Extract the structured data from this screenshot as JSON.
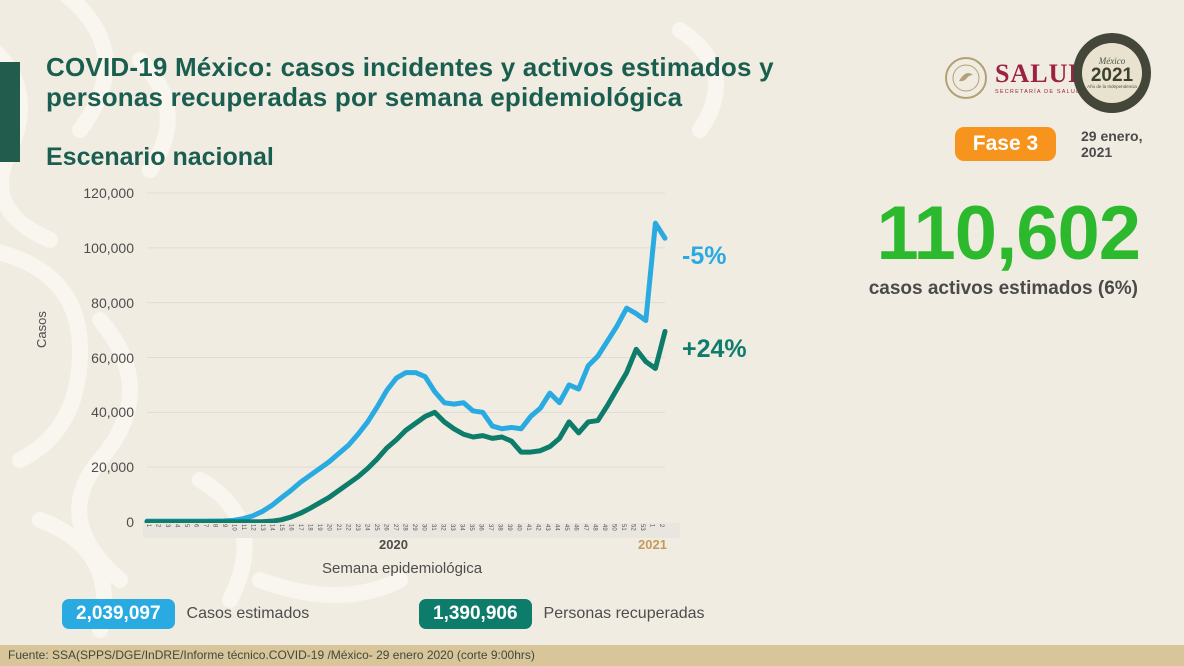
{
  "header": {
    "title": "COVID-19 México: casos incidentes y activos estimados y personas recuperadas por semana epidemiológica",
    "subtitle": "Escenario nacional",
    "phase_badge": "Fase 3",
    "date": "29 enero, 2021",
    "logos": {
      "salud": {
        "name": "SALUD",
        "sub": "SECRETARÍA DE SALUD"
      },
      "mexico2021": {
        "top": "México",
        "year": "2021",
        "sub": "Año de la Independencia"
      }
    }
  },
  "stats": {
    "active_cases": {
      "value": "110,602",
      "label": "casos activos estimados (6%)"
    },
    "estimated": {
      "value": "2,039,097",
      "label": "Casos estimados"
    },
    "recovered": {
      "value": "1,390,906",
      "label": "Personas recuperadas"
    }
  },
  "colors": {
    "title_green": "#1a5e50",
    "bright_green": "#2db92d",
    "blue": "#29abe2",
    "teal": "#0e7c6b",
    "orange": "#f7941d",
    "footer_bg": "#d9c59a"
  },
  "chart_data": {
    "type": "line",
    "title": "",
    "xlabel": "Semana epidemiológica",
    "ylabel": "Casos",
    "ylim": [
      0,
      120000
    ],
    "grid": true,
    "legend_position": "none",
    "y_ticks": [
      0,
      20000,
      40000,
      60000,
      80000,
      100000,
      120000
    ],
    "y_tick_labels": [
      "0",
      "20,000",
      "40,000",
      "60,000",
      "80,000",
      "100,000",
      "120,000"
    ],
    "x_year_labels": [
      "2020",
      "2021"
    ],
    "x": [
      "1",
      "2",
      "3",
      "4",
      "5",
      "6",
      "7",
      "8",
      "9",
      "10",
      "11",
      "12",
      "13",
      "14",
      "15",
      "16",
      "17",
      "18",
      "19",
      "20",
      "21",
      "22",
      "23",
      "24",
      "25",
      "26",
      "27",
      "28",
      "29",
      "30",
      "31",
      "32",
      "33",
      "34",
      "35",
      "36",
      "37",
      "38",
      "39",
      "40",
      "41",
      "42",
      "43",
      "44",
      "45",
      "46",
      "47",
      "48",
      "49",
      "50",
      "51",
      "52",
      "53",
      "1",
      "2"
    ],
    "series": [
      {
        "name": "Casos estimados",
        "color": "#29abe2",
        "annotation": "-5%",
        "values": [
          300,
          300,
          300,
          300,
          300,
          300,
          300,
          350,
          400,
          600,
          1200,
          2200,
          3800,
          6000,
          8800,
          11500,
          14500,
          17000,
          19500,
          22000,
          25000,
          28000,
          32000,
          36500,
          42000,
          48000,
          52500,
          54500,
          54500,
          53000,
          47500,
          43500,
          43000,
          43500,
          40500,
          40000,
          35000,
          34000,
          34500,
          34000,
          38500,
          41500,
          47000,
          43500,
          50000,
          48500,
          57000,
          60500,
          66000,
          71500,
          78000,
          76000,
          73500,
          109000,
          103500
        ]
      },
      {
        "name": "Personas recuperadas",
        "color": "#0e7c6b",
        "annotation": "+24%",
        "values": [
          100,
          100,
          100,
          100,
          100,
          100,
          100,
          100,
          100,
          100,
          100,
          100,
          100,
          300,
          800,
          1800,
          3200,
          5000,
          7000,
          9000,
          11500,
          14000,
          16500,
          19500,
          23000,
          27000,
          30000,
          33500,
          36000,
          38500,
          40000,
          36500,
          34000,
          32000,
          31000,
          31500,
          30500,
          31000,
          29500,
          25500,
          25500,
          26000,
          27500,
          30500,
          36500,
          32500,
          36500,
          37000,
          42500,
          48500,
          54500,
          63000,
          58500,
          56000,
          69500
        ]
      }
    ]
  },
  "footer": {
    "source": "Fuente: SSA(SPPS/DGE/InDRE/Informe técnico.COVID-19 /México- 29 enero 2020 (corte 9:00hrs)"
  }
}
